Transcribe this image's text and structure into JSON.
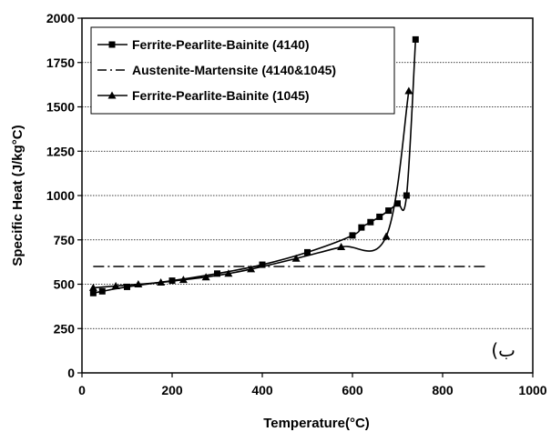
{
  "chart_data": {
    "type": "line",
    "xlabel": "Temperature(°C)",
    "ylabel": "Specific Heat (J/kg°C)",
    "xlim": [
      0,
      1000
    ],
    "ylim": [
      0,
      2000
    ],
    "x_ticks": [
      "0",
      "200",
      "400",
      "600",
      "800",
      "1000"
    ],
    "y_ticks": [
      "0",
      "250",
      "500",
      "750",
      "1000",
      "1250",
      "1500",
      "1750",
      "2000"
    ],
    "grid": "horizontal dotted",
    "legend_position": "top-left",
    "annotation": "(ب",
    "series": [
      {
        "name": "Ferrite-Pearlite-Bainite (4140)",
        "marker": "square",
        "line_style": "solid",
        "color": "#000000",
        "points": [
          [
            25,
            450
          ],
          [
            45,
            460
          ],
          [
            100,
            485
          ],
          [
            200,
            520
          ],
          [
            300,
            560
          ],
          [
            400,
            610
          ],
          [
            500,
            680
          ],
          [
            600,
            775
          ],
          [
            620,
            820
          ],
          [
            640,
            850
          ],
          [
            660,
            880
          ],
          [
            680,
            915
          ],
          [
            700,
            955
          ],
          [
            720,
            1000
          ],
          [
            740,
            1880
          ]
        ]
      },
      {
        "name": "Austenite-Martensite (4140&1045)",
        "marker": "none",
        "line_style": "dash-dot",
        "color": "#000000",
        "points": [
          [
            25,
            600
          ],
          [
            900,
            600
          ]
        ]
      },
      {
        "name": "Ferrite-Pearlite-Bainite (1045)",
        "marker": "triangle",
        "line_style": "solid",
        "color": "#000000",
        "points": [
          [
            25,
            480
          ],
          [
            75,
            490
          ],
          [
            125,
            500
          ],
          [
            175,
            510
          ],
          [
            225,
            525
          ],
          [
            275,
            540
          ],
          [
            325,
            560
          ],
          [
            375,
            585
          ],
          [
            475,
            645
          ],
          [
            575,
            710
          ],
          [
            675,
            770
          ],
          [
            725,
            1590
          ]
        ]
      }
    ]
  }
}
